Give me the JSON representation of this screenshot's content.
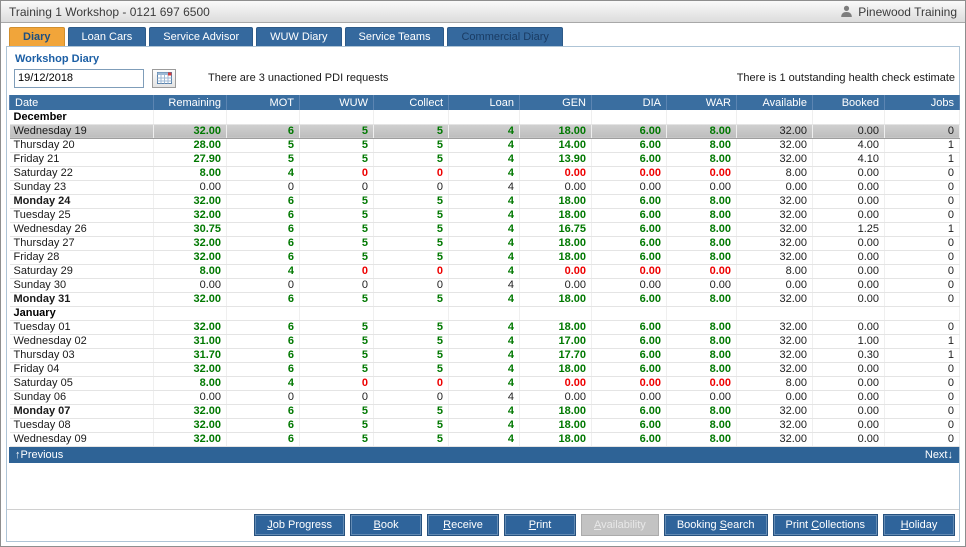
{
  "window": {
    "title": "Training 1 Workshop - 0121 697 6500",
    "user": "Pinewood Training"
  },
  "tabs": [
    {
      "label": "Diary",
      "active": true
    },
    {
      "label": "Loan Cars"
    },
    {
      "label": "Service Advisor"
    },
    {
      "label": "WUW Diary"
    },
    {
      "label": "Service Teams"
    },
    {
      "label": "Commercial Diary",
      "muted": true
    }
  ],
  "page": {
    "heading": "Workshop Diary",
    "date_value": "19/12/2018",
    "pdi_notice": "There are 3 unactioned PDI requests",
    "health_notice": "There is 1 outstanding health check estimate"
  },
  "icons": {
    "titlebar_user": "user-icon",
    "date_picker": "calendar-icon"
  },
  "colors": {
    "tab_active": "#f1a53a",
    "tab_blue": "#35699e",
    "header_blue": "#3a6ea0",
    "pager_blue": "#2e6396",
    "button_blue": "#2f649b",
    "positive_green": "#007800",
    "negative_red": "#ee0000",
    "selected_row_gray": "#c6c6c6"
  },
  "table": {
    "headers": [
      "Date",
      "Remaining",
      "MOT",
      "WUW",
      "Collect",
      "Loan",
      "GEN",
      "DIA",
      "WAR",
      "Available",
      "Booked",
      "Jobs"
    ],
    "rows": [
      {
        "month": "December"
      },
      {
        "date": "Wednesday 19",
        "selected": true,
        "cells": [
          [
            "32.00",
            "g"
          ],
          [
            "6",
            "g"
          ],
          [
            "5",
            "g"
          ],
          [
            "5",
            "g"
          ],
          [
            "4",
            "g"
          ],
          [
            "18.00",
            "g"
          ],
          [
            "6.00",
            "g"
          ],
          [
            "8.00",
            "g"
          ],
          [
            "32.00",
            "p"
          ],
          [
            "0.00",
            "p"
          ],
          [
            "0",
            "p"
          ]
        ]
      },
      {
        "date": "Thursday 20",
        "cells": [
          [
            "28.00",
            "g"
          ],
          [
            "5",
            "g"
          ],
          [
            "5",
            "g"
          ],
          [
            "5",
            "g"
          ],
          [
            "4",
            "g"
          ],
          [
            "14.00",
            "g"
          ],
          [
            "6.00",
            "g"
          ],
          [
            "8.00",
            "g"
          ],
          [
            "32.00",
            "p"
          ],
          [
            "4.00",
            "p"
          ],
          [
            "1",
            "p"
          ]
        ]
      },
      {
        "date": "Friday 21",
        "cells": [
          [
            "27.90",
            "g"
          ],
          [
            "5",
            "g"
          ],
          [
            "5",
            "g"
          ],
          [
            "5",
            "g"
          ],
          [
            "4",
            "g"
          ],
          [
            "13.90",
            "g"
          ],
          [
            "6.00",
            "g"
          ],
          [
            "8.00",
            "g"
          ],
          [
            "32.00",
            "p"
          ],
          [
            "4.10",
            "p"
          ],
          [
            "1",
            "p"
          ]
        ]
      },
      {
        "date": "Saturday 22",
        "cells": [
          [
            "8.00",
            "g"
          ],
          [
            "4",
            "g"
          ],
          [
            "0",
            "r"
          ],
          [
            "0",
            "r"
          ],
          [
            "4",
            "g"
          ],
          [
            "0.00",
            "r"
          ],
          [
            "0.00",
            "r"
          ],
          [
            "0.00",
            "r"
          ],
          [
            "8.00",
            "p"
          ],
          [
            "0.00",
            "p"
          ],
          [
            "0",
            "p"
          ]
        ]
      },
      {
        "date": "Sunday 23",
        "cells": [
          [
            "0.00",
            "p"
          ],
          [
            "0",
            "p"
          ],
          [
            "0",
            "p"
          ],
          [
            "0",
            "p"
          ],
          [
            "4",
            "p"
          ],
          [
            "0.00",
            "p"
          ],
          [
            "0.00",
            "p"
          ],
          [
            "0.00",
            "p"
          ],
          [
            "0.00",
            "p"
          ],
          [
            "0.00",
            "p"
          ],
          [
            "0",
            "p"
          ]
        ]
      },
      {
        "date": "Monday 24",
        "bold": true,
        "cells": [
          [
            "32.00",
            "g"
          ],
          [
            "6",
            "g"
          ],
          [
            "5",
            "g"
          ],
          [
            "5",
            "g"
          ],
          [
            "4",
            "g"
          ],
          [
            "18.00",
            "g"
          ],
          [
            "6.00",
            "g"
          ],
          [
            "8.00",
            "g"
          ],
          [
            "32.00",
            "p"
          ],
          [
            "0.00",
            "p"
          ],
          [
            "0",
            "p"
          ]
        ]
      },
      {
        "date": "Tuesday 25",
        "cells": [
          [
            "32.00",
            "g"
          ],
          [
            "6",
            "g"
          ],
          [
            "5",
            "g"
          ],
          [
            "5",
            "g"
          ],
          [
            "4",
            "g"
          ],
          [
            "18.00",
            "g"
          ],
          [
            "6.00",
            "g"
          ],
          [
            "8.00",
            "g"
          ],
          [
            "32.00",
            "p"
          ],
          [
            "0.00",
            "p"
          ],
          [
            "0",
            "p"
          ]
        ]
      },
      {
        "date": "Wednesday 26",
        "cells": [
          [
            "30.75",
            "g"
          ],
          [
            "6",
            "g"
          ],
          [
            "5",
            "g"
          ],
          [
            "5",
            "g"
          ],
          [
            "4",
            "g"
          ],
          [
            "16.75",
            "g"
          ],
          [
            "6.00",
            "g"
          ],
          [
            "8.00",
            "g"
          ],
          [
            "32.00",
            "p"
          ],
          [
            "1.25",
            "p"
          ],
          [
            "1",
            "p"
          ]
        ]
      },
      {
        "date": "Thursday 27",
        "cells": [
          [
            "32.00",
            "g"
          ],
          [
            "6",
            "g"
          ],
          [
            "5",
            "g"
          ],
          [
            "5",
            "g"
          ],
          [
            "4",
            "g"
          ],
          [
            "18.00",
            "g"
          ],
          [
            "6.00",
            "g"
          ],
          [
            "8.00",
            "g"
          ],
          [
            "32.00",
            "p"
          ],
          [
            "0.00",
            "p"
          ],
          [
            "0",
            "p"
          ]
        ]
      },
      {
        "date": "Friday 28",
        "cells": [
          [
            "32.00",
            "g"
          ],
          [
            "6",
            "g"
          ],
          [
            "5",
            "g"
          ],
          [
            "5",
            "g"
          ],
          [
            "4",
            "g"
          ],
          [
            "18.00",
            "g"
          ],
          [
            "6.00",
            "g"
          ],
          [
            "8.00",
            "g"
          ],
          [
            "32.00",
            "p"
          ],
          [
            "0.00",
            "p"
          ],
          [
            "0",
            "p"
          ]
        ]
      },
      {
        "date": "Saturday 29",
        "cells": [
          [
            "8.00",
            "g"
          ],
          [
            "4",
            "g"
          ],
          [
            "0",
            "r"
          ],
          [
            "0",
            "r"
          ],
          [
            "4",
            "g"
          ],
          [
            "0.00",
            "r"
          ],
          [
            "0.00",
            "r"
          ],
          [
            "0.00",
            "r"
          ],
          [
            "8.00",
            "p"
          ],
          [
            "0.00",
            "p"
          ],
          [
            "0",
            "p"
          ]
        ]
      },
      {
        "date": "Sunday 30",
        "cells": [
          [
            "0.00",
            "p"
          ],
          [
            "0",
            "p"
          ],
          [
            "0",
            "p"
          ],
          [
            "0",
            "p"
          ],
          [
            "4",
            "p"
          ],
          [
            "0.00",
            "p"
          ],
          [
            "0.00",
            "p"
          ],
          [
            "0.00",
            "p"
          ],
          [
            "0.00",
            "p"
          ],
          [
            "0.00",
            "p"
          ],
          [
            "0",
            "p"
          ]
        ]
      },
      {
        "date": "Monday 31",
        "bold": true,
        "cells": [
          [
            "32.00",
            "g"
          ],
          [
            "6",
            "g"
          ],
          [
            "5",
            "g"
          ],
          [
            "5",
            "g"
          ],
          [
            "4",
            "g"
          ],
          [
            "18.00",
            "g"
          ],
          [
            "6.00",
            "g"
          ],
          [
            "8.00",
            "g"
          ],
          [
            "32.00",
            "p"
          ],
          [
            "0.00",
            "p"
          ],
          [
            "0",
            "p"
          ]
        ]
      },
      {
        "month": "January"
      },
      {
        "date": "Tuesday 01",
        "cells": [
          [
            "32.00",
            "g"
          ],
          [
            "6",
            "g"
          ],
          [
            "5",
            "g"
          ],
          [
            "5",
            "g"
          ],
          [
            "4",
            "g"
          ],
          [
            "18.00",
            "g"
          ],
          [
            "6.00",
            "g"
          ],
          [
            "8.00",
            "g"
          ],
          [
            "32.00",
            "p"
          ],
          [
            "0.00",
            "p"
          ],
          [
            "0",
            "p"
          ]
        ]
      },
      {
        "date": "Wednesday 02",
        "cells": [
          [
            "31.00",
            "g"
          ],
          [
            "6",
            "g"
          ],
          [
            "5",
            "g"
          ],
          [
            "5",
            "g"
          ],
          [
            "4",
            "g"
          ],
          [
            "17.00",
            "g"
          ],
          [
            "6.00",
            "g"
          ],
          [
            "8.00",
            "g"
          ],
          [
            "32.00",
            "p"
          ],
          [
            "1.00",
            "p"
          ],
          [
            "1",
            "p"
          ]
        ]
      },
      {
        "date": "Thursday 03",
        "cells": [
          [
            "31.70",
            "g"
          ],
          [
            "6",
            "g"
          ],
          [
            "5",
            "g"
          ],
          [
            "5",
            "g"
          ],
          [
            "4",
            "g"
          ],
          [
            "17.70",
            "g"
          ],
          [
            "6.00",
            "g"
          ],
          [
            "8.00",
            "g"
          ],
          [
            "32.00",
            "p"
          ],
          [
            "0.30",
            "p"
          ],
          [
            "1",
            "p"
          ]
        ]
      },
      {
        "date": "Friday 04",
        "cells": [
          [
            "32.00",
            "g"
          ],
          [
            "6",
            "g"
          ],
          [
            "5",
            "g"
          ],
          [
            "5",
            "g"
          ],
          [
            "4",
            "g"
          ],
          [
            "18.00",
            "g"
          ],
          [
            "6.00",
            "g"
          ],
          [
            "8.00",
            "g"
          ],
          [
            "32.00",
            "p"
          ],
          [
            "0.00",
            "p"
          ],
          [
            "0",
            "p"
          ]
        ]
      },
      {
        "date": "Saturday 05",
        "cells": [
          [
            "8.00",
            "g"
          ],
          [
            "4",
            "g"
          ],
          [
            "0",
            "r"
          ],
          [
            "0",
            "r"
          ],
          [
            "4",
            "g"
          ],
          [
            "0.00",
            "r"
          ],
          [
            "0.00",
            "r"
          ],
          [
            "0.00",
            "r"
          ],
          [
            "8.00",
            "p"
          ],
          [
            "0.00",
            "p"
          ],
          [
            "0",
            "p"
          ]
        ]
      },
      {
        "date": "Sunday 06",
        "cells": [
          [
            "0.00",
            "p"
          ],
          [
            "0",
            "p"
          ],
          [
            "0",
            "p"
          ],
          [
            "0",
            "p"
          ],
          [
            "4",
            "p"
          ],
          [
            "0.00",
            "p"
          ],
          [
            "0.00",
            "p"
          ],
          [
            "0.00",
            "p"
          ],
          [
            "0.00",
            "p"
          ],
          [
            "0.00",
            "p"
          ],
          [
            "0",
            "p"
          ]
        ]
      },
      {
        "date": "Monday 07",
        "bold": true,
        "cells": [
          [
            "32.00",
            "g"
          ],
          [
            "6",
            "g"
          ],
          [
            "5",
            "g"
          ],
          [
            "5",
            "g"
          ],
          [
            "4",
            "g"
          ],
          [
            "18.00",
            "g"
          ],
          [
            "6.00",
            "g"
          ],
          [
            "8.00",
            "g"
          ],
          [
            "32.00",
            "p"
          ],
          [
            "0.00",
            "p"
          ],
          [
            "0",
            "p"
          ]
        ]
      },
      {
        "date": "Tuesday 08",
        "cells": [
          [
            "32.00",
            "g"
          ],
          [
            "6",
            "g"
          ],
          [
            "5",
            "g"
          ],
          [
            "5",
            "g"
          ],
          [
            "4",
            "g"
          ],
          [
            "18.00",
            "g"
          ],
          [
            "6.00",
            "g"
          ],
          [
            "8.00",
            "g"
          ],
          [
            "32.00",
            "p"
          ],
          [
            "0.00",
            "p"
          ],
          [
            "0",
            "p"
          ]
        ]
      },
      {
        "date": "Wednesday 09",
        "cells": [
          [
            "32.00",
            "g"
          ],
          [
            "6",
            "g"
          ],
          [
            "5",
            "g"
          ],
          [
            "5",
            "g"
          ],
          [
            "4",
            "g"
          ],
          [
            "18.00",
            "g"
          ],
          [
            "6.00",
            "g"
          ],
          [
            "8.00",
            "g"
          ],
          [
            "32.00",
            "p"
          ],
          [
            "0.00",
            "p"
          ],
          [
            "0",
            "p"
          ]
        ]
      }
    ]
  },
  "pager": {
    "prev_arrow": "↑",
    "prev_label": "Previous",
    "next_label": "Next",
    "next_arrow": "↓"
  },
  "footer": {
    "buttons": [
      {
        "pre": "",
        "key": "J",
        "post": "ob Progress",
        "disabled": false
      },
      {
        "pre": "",
        "key": "B",
        "post": "ook",
        "disabled": false
      },
      {
        "pre": "",
        "key": "R",
        "post": "eceive",
        "disabled": false
      },
      {
        "pre": "",
        "key": "P",
        "post": "rint",
        "disabled": false
      },
      {
        "pre": "",
        "key": "A",
        "post": "vailability",
        "disabled": true
      },
      {
        "pre": "Booking ",
        "key": "S",
        "post": "earch",
        "disabled": false
      },
      {
        "pre": "Print ",
        "key": "C",
        "post": "ollections",
        "disabled": false
      },
      {
        "pre": "",
        "key": "H",
        "post": "oliday",
        "disabled": false
      }
    ]
  }
}
